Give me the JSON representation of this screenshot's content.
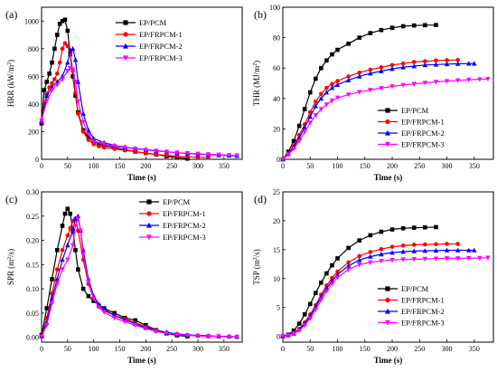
{
  "chart_data": [
    {
      "panel": "(a)",
      "type": "line",
      "xlabel": "Time (s)",
      "ylabel": "HRR (kW/m²)",
      "ylabel_main": "HRR (kW/m",
      "ylabel_sup": "2",
      "ylabel_end": ")",
      "xlim": [
        0,
        385
      ],
      "ylim": [
        0,
        1100
      ],
      "xticks": [
        0,
        50,
        100,
        150,
        200,
        250,
        300,
        350
      ],
      "yticks": [
        0,
        200,
        400,
        600,
        800,
        1000
      ],
      "legend_position": "top-right",
      "series": [
        {
          "name": "EP/PCM",
          "color": "#000000",
          "marker": "square",
          "x": [
            0,
            5,
            10,
            15,
            20,
            25,
            30,
            35,
            40,
            45,
            50,
            55,
            60,
            65,
            70,
            80,
            90,
            100,
            110,
            120,
            140,
            160,
            180,
            200,
            220,
            240,
            260,
            280
          ],
          "y": [
            260,
            500,
            560,
            620,
            700,
            800,
            900,
            980,
            1000,
            1010,
            930,
            760,
            600,
            460,
            340,
            210,
            160,
            130,
            110,
            100,
            85,
            70,
            55,
            45,
            35,
            22,
            12,
            5
          ]
        },
        {
          "name": "EP/FRPCM-1",
          "color": "#ff0000",
          "marker": "circle",
          "x": [
            0,
            5,
            10,
            15,
            20,
            25,
            30,
            35,
            40,
            45,
            50,
            55,
            60,
            65,
            70,
            80,
            90,
            100,
            110,
            120,
            140,
            160,
            180,
            200,
            220,
            240,
            260,
            280,
            300,
            320
          ],
          "y": [
            270,
            400,
            470,
            520,
            550,
            580,
            620,
            700,
            800,
            840,
            820,
            760,
            640,
            480,
            330,
            200,
            140,
            110,
            95,
            85,
            75,
            65,
            55,
            45,
            35,
            28,
            22,
            18,
            15,
            12
          ]
        },
        {
          "name": "EP/FRPCM-2",
          "color": "#0000ff",
          "marker": "triangle-up",
          "x": [
            0,
            10,
            20,
            30,
            40,
            50,
            55,
            60,
            65,
            70,
            80,
            90,
            100,
            120,
            140,
            160,
            180,
            200,
            220,
            240,
            260,
            280,
            300,
            320,
            340,
            360,
            375
          ],
          "y": [
            270,
            460,
            520,
            560,
            600,
            700,
            790,
            800,
            720,
            560,
            330,
            210,
            150,
            120,
            100,
            88,
            78,
            70,
            62,
            55,
            48,
            42,
            38,
            34,
            30,
            27,
            25
          ]
        },
        {
          "name": "EP/FRPCM-3",
          "color": "#ff00ff",
          "marker": "triangle-down",
          "x": [
            0,
            10,
            20,
            30,
            40,
            50,
            55,
            60,
            65,
            70,
            80,
            90,
            100,
            120,
            140,
            160,
            180,
            200,
            220,
            240,
            260,
            280,
            300,
            320,
            340,
            360,
            375
          ],
          "y": [
            280,
            420,
            500,
            540,
            580,
            640,
            660,
            650,
            560,
            420,
            270,
            180,
            130,
            110,
            95,
            85,
            75,
            68,
            60,
            54,
            48,
            44,
            40,
            36,
            33,
            30,
            28
          ]
        }
      ]
    },
    {
      "panel": "(b)",
      "type": "line",
      "xlabel": "Time (s)",
      "ylabel": "THR (MJ/m²)",
      "ylabel_main": "THR (MJ/m",
      "ylabel_sup": "2",
      "ylabel_end": ")",
      "xlim": [
        0,
        385
      ],
      "ylim": [
        0,
        100
      ],
      "xticks": [
        0,
        50,
        100,
        150,
        200,
        250,
        300,
        350
      ],
      "yticks": [
        0,
        20,
        40,
        60,
        80,
        100
      ],
      "legend_position": "bottom-right",
      "series": [
        {
          "name": "EP/PCM",
          "color": "#000000",
          "marker": "square",
          "x": [
            0,
            10,
            20,
            30,
            40,
            50,
            60,
            70,
            80,
            90,
            100,
            120,
            140,
            160,
            180,
            200,
            220,
            240,
            260,
            280
          ],
          "y": [
            0,
            5,
            12,
            22,
            33,
            44,
            53,
            60,
            65,
            69,
            72,
            76,
            80,
            83,
            85,
            86.5,
            87.5,
            88,
            88.2,
            88.3
          ]
        },
        {
          "name": "EP/FRPCM-1",
          "color": "#ff0000",
          "marker": "circle",
          "x": [
            0,
            10,
            20,
            30,
            40,
            50,
            60,
            70,
            80,
            90,
            100,
            120,
            140,
            160,
            180,
            200,
            220,
            240,
            260,
            280,
            300,
            320
          ],
          "y": [
            0,
            4,
            9,
            16,
            23,
            31,
            38,
            43,
            47,
            49.5,
            51.5,
            54.5,
            57,
            59,
            60.5,
            62,
            63,
            64,
            64.5,
            65,
            65.2,
            65.3
          ]
        },
        {
          "name": "EP/FRPCM-2",
          "color": "#0000ff",
          "marker": "triangle-up",
          "x": [
            0,
            10,
            20,
            30,
            40,
            50,
            60,
            70,
            80,
            90,
            100,
            120,
            140,
            160,
            180,
            200,
            220,
            240,
            260,
            280,
            300,
            320,
            340,
            350
          ],
          "y": [
            0,
            3.5,
            8,
            14,
            21,
            28,
            35,
            40,
            44,
            47,
            49,
            52,
            54.5,
            56.5,
            58,
            59.5,
            60.5,
            61.3,
            62,
            62.3,
            62.6,
            62.8,
            63,
            63
          ]
        },
        {
          "name": "EP/FRPCM-3",
          "color": "#ff00ff",
          "marker": "triangle-down",
          "x": [
            0,
            10,
            20,
            30,
            40,
            50,
            60,
            70,
            80,
            90,
            100,
            120,
            140,
            160,
            180,
            200,
            220,
            240,
            260,
            280,
            300,
            320,
            340,
            360,
            375
          ],
          "y": [
            0,
            3,
            7,
            12,
            18,
            24,
            29,
            33,
            36,
            38.5,
            40.5,
            42.5,
            44.2,
            45.6,
            46.8,
            47.9,
            48.8,
            49.6,
            50.3,
            50.9,
            51.4,
            51.9,
            52.3,
            52.6,
            52.8
          ]
        }
      ]
    },
    {
      "panel": "(c)",
      "type": "line",
      "xlabel": "Time (s)",
      "ylabel": "SPR (m²/s)",
      "ylabel_main": "SPR (m",
      "ylabel_sup": "2",
      "ylabel_end": "/s)",
      "xlim": [
        0,
        385
      ],
      "ylim": [
        -0.01,
        0.3
      ],
      "xticks": [
        0,
        50,
        100,
        150,
        200,
        250,
        300,
        350
      ],
      "yticks": [
        0.0,
        0.05,
        0.1,
        0.15,
        0.2,
        0.25,
        0.3
      ],
      "legend_position": "top-right",
      "series": [
        {
          "name": "EP/PCM",
          "color": "#000000",
          "marker": "square",
          "x": [
            0,
            10,
            20,
            30,
            40,
            45,
            50,
            55,
            60,
            65,
            70,
            80,
            90,
            100,
            110,
            120,
            140,
            160,
            180,
            200,
            220,
            240,
            260,
            280
          ],
          "y": [
            0.005,
            0.06,
            0.12,
            0.18,
            0.23,
            0.255,
            0.265,
            0.255,
            0.22,
            0.18,
            0.14,
            0.1,
            0.085,
            0.075,
            0.065,
            0.06,
            0.05,
            0.04,
            0.035,
            0.025,
            0.015,
            0.008,
            0.004,
            0.002
          ]
        },
        {
          "name": "EP/FRPCM-1",
          "color": "#ff0000",
          "marker": "circle",
          "x": [
            0,
            10,
            20,
            30,
            40,
            50,
            55,
            60,
            65,
            70,
            80,
            90,
            100,
            110,
            120,
            140,
            160,
            180,
            200,
            220,
            240,
            260,
            280,
            300,
            320
          ],
          "y": [
            0.002,
            0.04,
            0.09,
            0.14,
            0.18,
            0.21,
            0.225,
            0.24,
            0.245,
            0.22,
            0.16,
            0.11,
            0.08,
            0.065,
            0.055,
            0.045,
            0.038,
            0.03,
            0.022,
            0.015,
            0.01,
            0.006,
            0.004,
            0.003,
            0.002
          ]
        },
        {
          "name": "EP/FRPCM-2",
          "color": "#0000ff",
          "marker": "triangle-up",
          "x": [
            0,
            10,
            20,
            30,
            40,
            50,
            60,
            65,
            70,
            75,
            80,
            90,
            100,
            110,
            120,
            140,
            160,
            180,
            200,
            220,
            240,
            260,
            280,
            300,
            320,
            340,
            360,
            375
          ],
          "y": [
            0.002,
            0.03,
            0.08,
            0.12,
            0.16,
            0.19,
            0.22,
            0.245,
            0.25,
            0.22,
            0.18,
            0.12,
            0.085,
            0.068,
            0.058,
            0.045,
            0.036,
            0.028,
            0.02,
            0.014,
            0.01,
            0.007,
            0.005,
            0.004,
            0.003,
            0.002,
            0.002,
            0.001
          ]
        },
        {
          "name": "EP/FRPCM-3",
          "color": "#ff00ff",
          "marker": "triangle-down",
          "x": [
            0,
            10,
            20,
            30,
            40,
            50,
            60,
            65,
            70,
            75,
            80,
            90,
            100,
            110,
            120,
            140,
            160,
            180,
            200,
            220,
            240,
            260,
            280,
            300,
            320,
            340,
            360,
            375
          ],
          "y": [
            0.002,
            0.025,
            0.07,
            0.11,
            0.14,
            0.16,
            0.19,
            0.23,
            0.245,
            0.22,
            0.17,
            0.115,
            0.08,
            0.062,
            0.052,
            0.04,
            0.032,
            0.025,
            0.018,
            0.012,
            0.008,
            0.006,
            0.004,
            0.003,
            0.002,
            0.002,
            0.001,
            0.001
          ]
        }
      ]
    },
    {
      "panel": "(d)",
      "type": "line",
      "xlabel": "Time (s)",
      "ylabel": "TSP (m²/s)",
      "ylabel_main": "TSP (m",
      "ylabel_sup": "2",
      "ylabel_end": "/s)",
      "xlim": [
        0,
        385
      ],
      "ylim": [
        -1,
        25
      ],
      "xticks": [
        0,
        50,
        100,
        150,
        200,
        250,
        300,
        350
      ],
      "yticks": [
        0,
        5,
        10,
        15,
        20,
        25
      ],
      "legend_position": "bottom-right",
      "series": [
        {
          "name": "EP/PCM",
          "color": "#000000",
          "marker": "square",
          "x": [
            0,
            10,
            20,
            30,
            40,
            50,
            60,
            70,
            80,
            90,
            100,
            120,
            140,
            160,
            180,
            200,
            220,
            240,
            260,
            280
          ],
          "y": [
            0,
            0.3,
            1,
            2.2,
            3.8,
            5.6,
            7.5,
            9.3,
            10.9,
            12.3,
            13.5,
            15.3,
            16.6,
            17.5,
            18.1,
            18.5,
            18.7,
            18.8,
            18.85,
            18.9
          ]
        },
        {
          "name": "EP/FRPCM-1",
          "color": "#ff0000",
          "marker": "circle",
          "x": [
            0,
            10,
            20,
            30,
            40,
            50,
            60,
            70,
            80,
            90,
            100,
            120,
            140,
            160,
            180,
            200,
            220,
            240,
            260,
            280,
            300,
            320
          ],
          "y": [
            0,
            0.2,
            0.6,
            1.3,
            2.4,
            3.8,
            5.4,
            7.2,
            8.8,
            10.1,
            11.2,
            12.8,
            13.9,
            14.6,
            15.1,
            15.5,
            15.7,
            15.85,
            15.9,
            15.95,
            16,
            16
          ]
        },
        {
          "name": "EP/FRPCM-2",
          "color": "#0000ff",
          "marker": "triangle-up",
          "x": [
            0,
            10,
            20,
            30,
            40,
            50,
            60,
            70,
            80,
            90,
            100,
            120,
            140,
            160,
            180,
            200,
            220,
            240,
            260,
            280,
            300,
            320,
            340,
            350
          ],
          "y": [
            0,
            0.2,
            0.5,
            1.2,
            2.2,
            3.5,
            5.1,
            6.8,
            8.3,
            9.6,
            10.7,
            12.2,
            13.2,
            13.8,
            14.2,
            14.5,
            14.65,
            14.75,
            14.8,
            14.85,
            14.9,
            14.9,
            14.9,
            14.9
          ]
        },
        {
          "name": "EP/FRPCM-3",
          "color": "#ff00ff",
          "marker": "triangle-down",
          "x": [
            0,
            10,
            20,
            30,
            40,
            50,
            60,
            70,
            80,
            90,
            100,
            120,
            140,
            160,
            180,
            200,
            220,
            240,
            260,
            280,
            300,
            320,
            340,
            360,
            375
          ],
          "y": [
            0,
            0.15,
            0.45,
            1,
            1.9,
            3.1,
            4.6,
            6.3,
            7.8,
            9.1,
            10.2,
            11.6,
            12.4,
            12.8,
            13.05,
            13.2,
            13.3,
            13.35,
            13.4,
            13.45,
            13.5,
            13.5,
            13.55,
            13.55,
            13.6
          ]
        }
      ]
    }
  ]
}
